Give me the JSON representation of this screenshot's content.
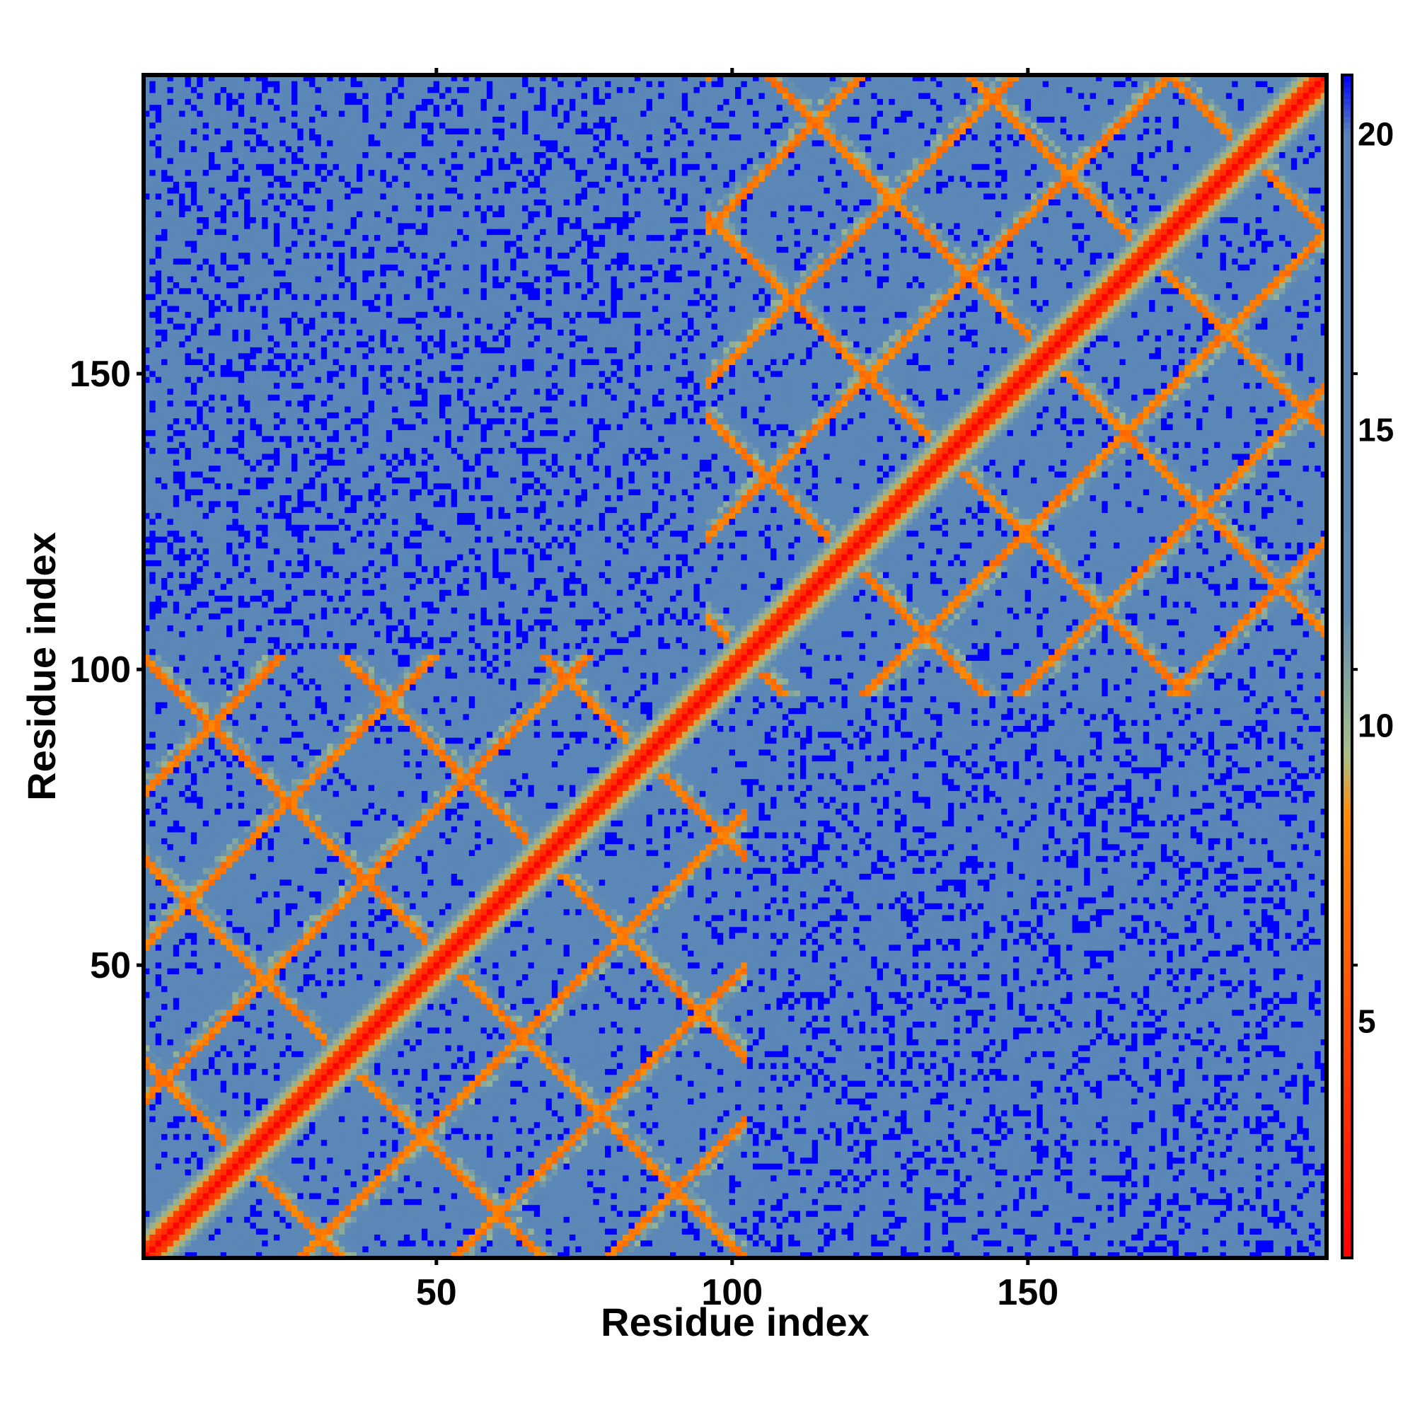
{
  "chart_data": {
    "type": "heatmap",
    "title": "",
    "xlabel": "Residue index",
    "ylabel": "Residue index",
    "x_range": [
      1,
      200
    ],
    "y_range": [
      1,
      200
    ],
    "x_ticks": [
      50,
      100,
      150
    ],
    "y_ticks": [
      50,
      100,
      150
    ],
    "colorbar": {
      "ticks": [
        5,
        10,
        15,
        20
      ],
      "range": [
        1,
        21
      ],
      "stops": [
        {
          "value": 1,
          "color": "#ff0000"
        },
        {
          "value": 8.5,
          "color": "#ff8c00"
        },
        {
          "value": 9.5,
          "color": "#a9c08a"
        },
        {
          "value": 12,
          "color": "#5f8ab2"
        },
        {
          "value": 20,
          "color": "#5a87b8"
        },
        {
          "value": 21,
          "color": "#0000ff"
        }
      ],
      "placement": "right"
    },
    "description_values": {
      "diagonal_value": 1,
      "background_value": 18,
      "far_value": 21
    },
    "domains": [
      {
        "start": 1,
        "end": 102
      },
      {
        "start": 96,
        "end": 200
      }
    ],
    "grid": false
  }
}
